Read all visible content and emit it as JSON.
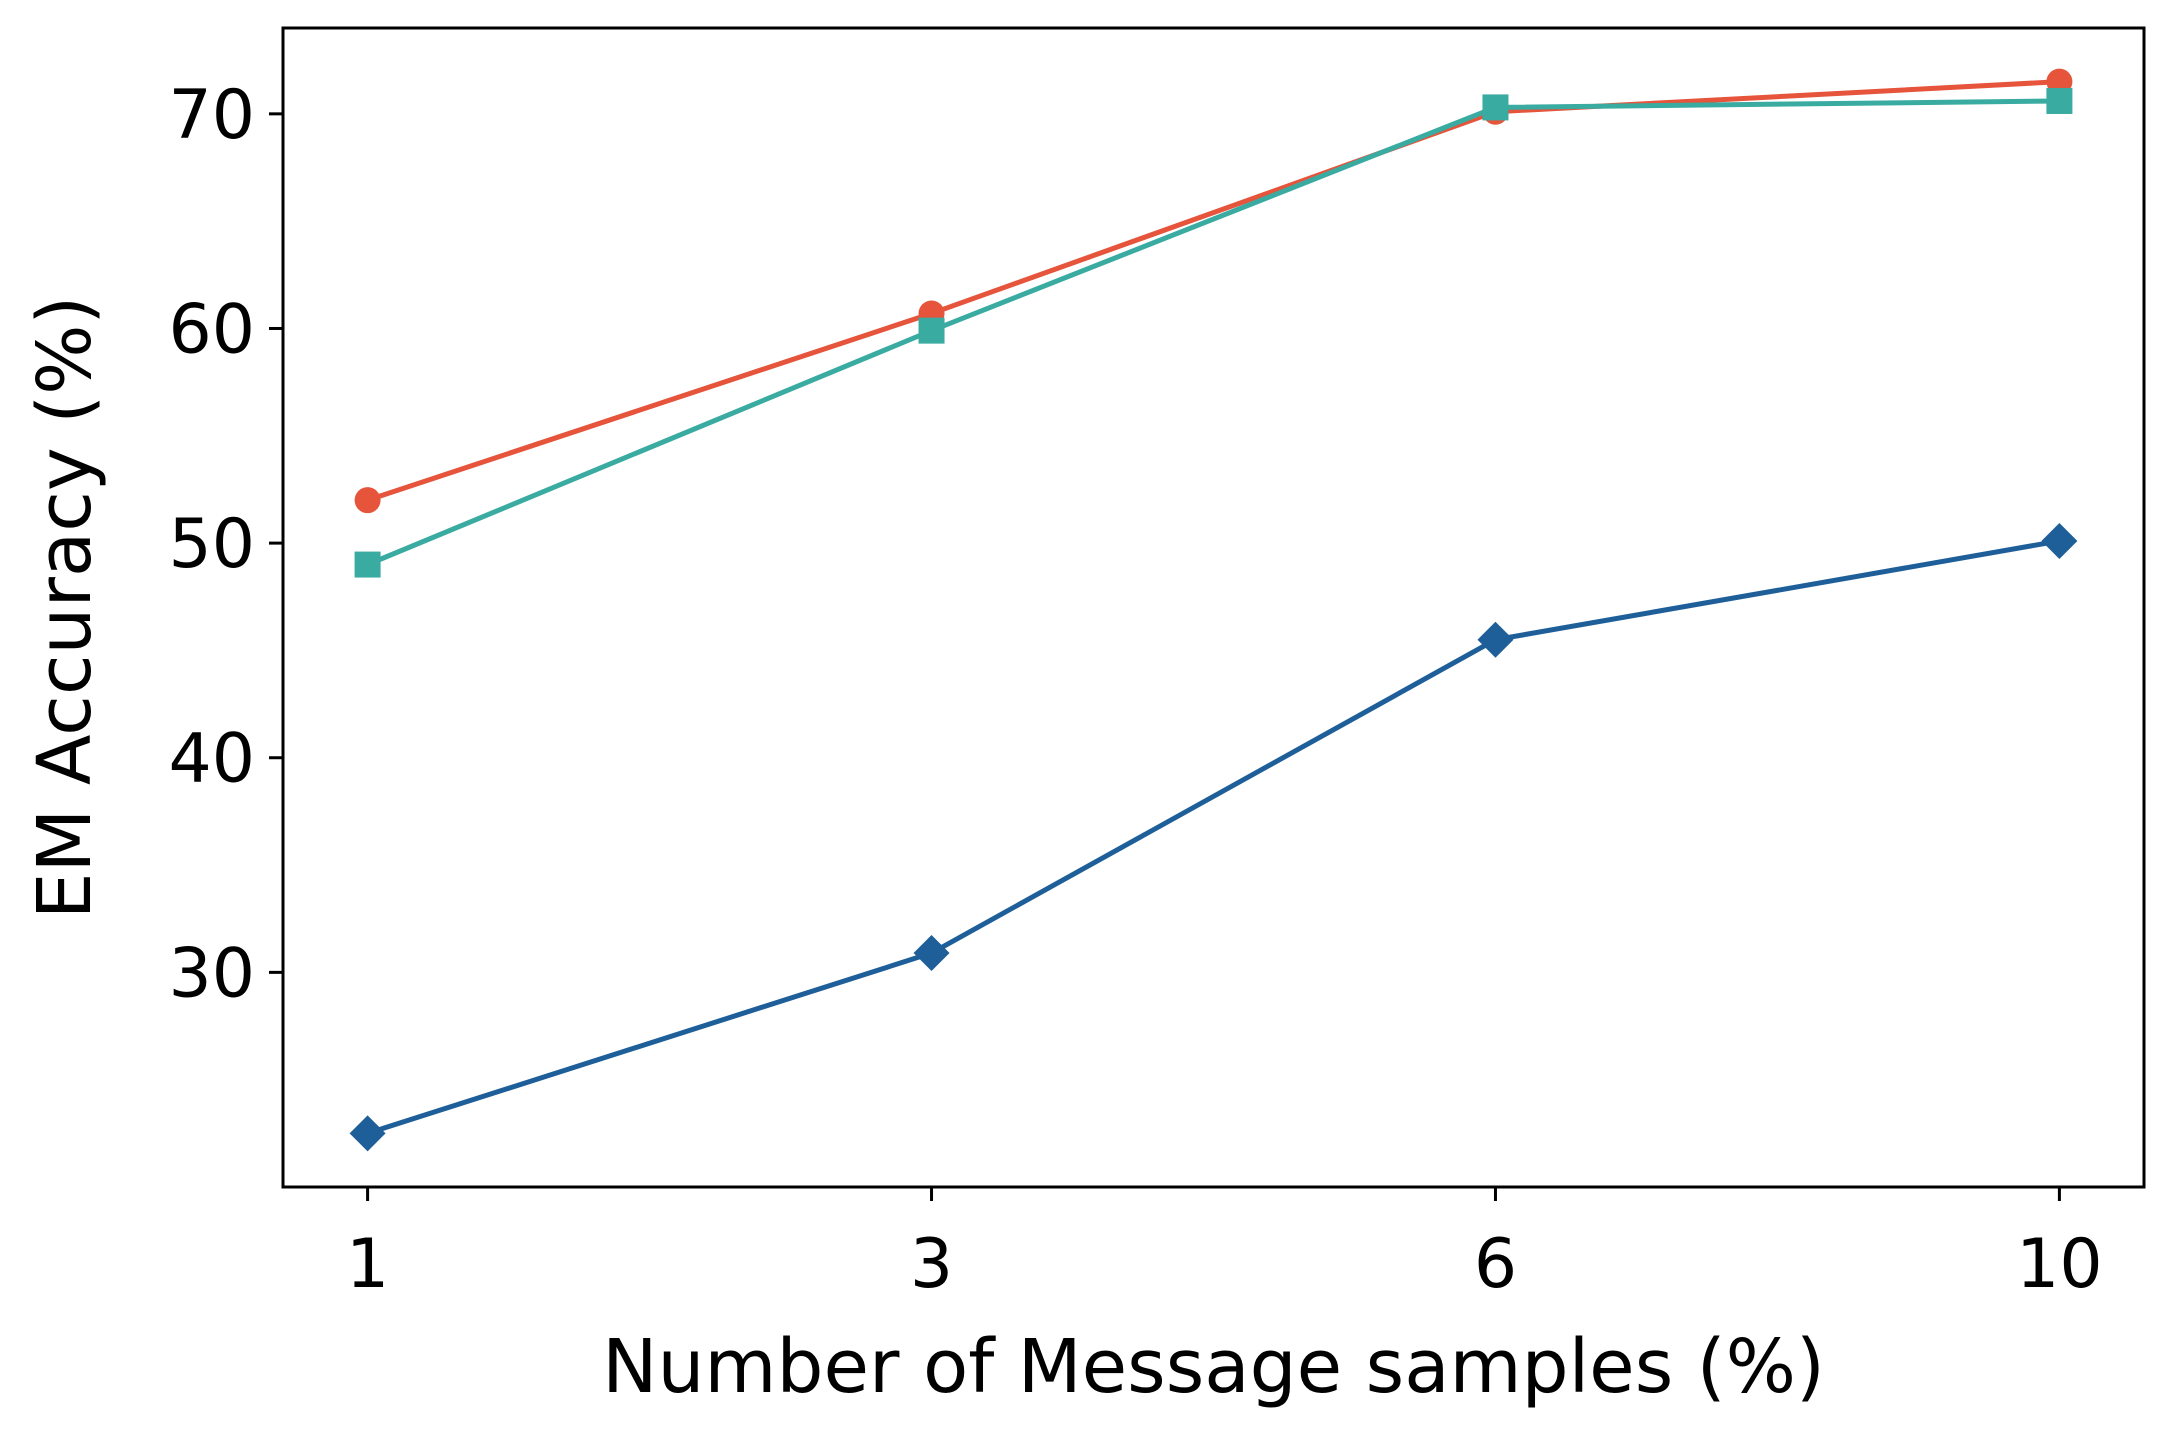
{
  "chart_data": {
    "type": "line",
    "title": "",
    "xlabel": "Number of Message samples (%)",
    "ylabel": "EM Accuracy (%)",
    "categories": [
      "1",
      "3",
      "6",
      "10"
    ],
    "ylim": [
      20,
      74
    ],
    "yticks": [
      "30",
      "40",
      "50",
      "60",
      "70"
    ],
    "grid": false,
    "legend": "none",
    "series": [
      {
        "marker": "circle",
        "color": "#e5543b",
        "values": [
          52.0,
          60.7,
          70.1,
          71.5
        ]
      },
      {
        "marker": "square",
        "color": "#3aaba1",
        "values": [
          49.0,
          59.9,
          70.3,
          70.6
        ]
      },
      {
        "marker": "diamond",
        "color": "#1f5f99",
        "values": [
          22.5,
          30.9,
          45.5,
          50.1
        ]
      }
    ]
  }
}
